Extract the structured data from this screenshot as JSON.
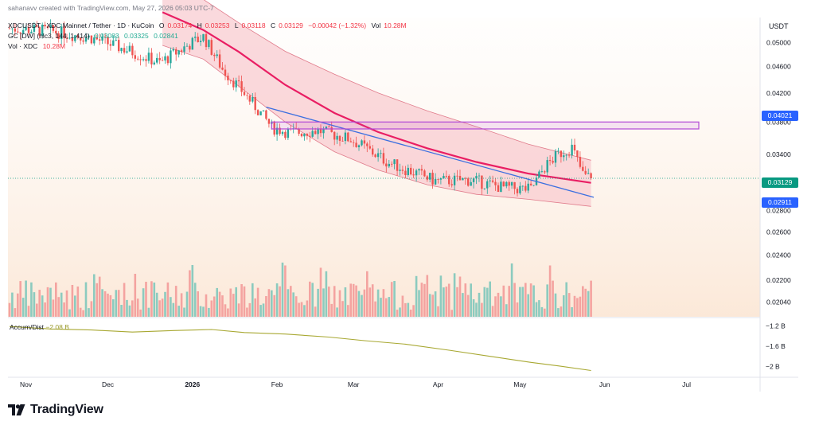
{
  "header": {
    "author_line": "sahanavv created with TradingView.com, May 27, 2026 05:03 UTC-7",
    "symbol": "XDCUSDT · XDC Mainnet / Tether · 1D · KuCoin",
    "ohlc": {
      "o_label": "O",
      "o": "0.03174",
      "h_label": "H",
      "h": "0.03253",
      "l_label": "L",
      "l": "0.03118",
      "c_label": "C",
      "c": "0.03129",
      "change": "−0.00042 (−1.32%)",
      "vol_label": "Vol",
      "vol": "10.28M"
    },
    "gc_line": {
      "name": "GC [DW] (hlc3, 144, 1.414)",
      "v1": "0.03083",
      "v2": "0.03325",
      "v3": "0.02841"
    },
    "vol_line": {
      "name": "Vol · XDC",
      "value": "10.28M"
    }
  },
  "currency": "USDT",
  "price_tags": {
    "upper": "0.04021",
    "last": "0.03129",
    "lower": "0.02911"
  },
  "accum_dist": {
    "label": "Accum/Dist",
    "value": "−2.08 B"
  },
  "brand": {
    "name": "TradingView"
  },
  "colors": {
    "up": "#26a69a",
    "down": "#ef5350",
    "vol_up": "#8ccbbf",
    "vol_down": "#f4a3a0",
    "channel_fill": "#f8c9cf",
    "center_line": "#e91e63",
    "trend_line": "#3b6fe0",
    "box": "#b24ad6",
    "ad_line": "#a8a832",
    "tag_blue": "#2962ff",
    "tag_green": "#089981"
  },
  "chart_data": [
    {
      "type": "candlestick",
      "title": "XDCUSDT · XDC Mainnet / Tether · 1D · KuCoin",
      "x_ticks": [
        "Nov",
        "Dec",
        "2026",
        "Feb",
        "Mar",
        "Apr",
        "May",
        "Jun",
        "Jul"
      ],
      "y_ticks": [
        "0.05000",
        "0.04600",
        "0.04200",
        "0.03800",
        "0.03400",
        "0.02800",
        "0.02600",
        "0.02400",
        "0.02200",
        "0.02040"
      ],
      "y_scale": "log",
      "ylim": [
        0.0194,
        0.0545
      ],
      "last_close": 0.03129,
      "daily_close_path": [
        {
          "date": "2025-10-26",
          "close": 0.0525
        },
        {
          "date": "2025-11-10",
          "close": 0.052
        },
        {
          "date": "2025-11-25",
          "close": 0.0508
        },
        {
          "date": "2025-12-10",
          "close": 0.0484
        },
        {
          "date": "2025-12-20",
          "close": 0.0466
        },
        {
          "date": "2025-12-31",
          "close": 0.0497
        },
        {
          "date": "2026-01-05",
          "close": 0.051
        },
        {
          "date": "2026-01-12",
          "close": 0.0456
        },
        {
          "date": "2026-01-22",
          "close": 0.041
        },
        {
          "date": "2026-01-30",
          "close": 0.0373
        },
        {
          "date": "2026-02-06",
          "close": 0.0366
        },
        {
          "date": "2026-02-16",
          "close": 0.0369
        },
        {
          "date": "2026-02-28",
          "close": 0.0358
        },
        {
          "date": "2026-03-14",
          "close": 0.033
        },
        {
          "date": "2026-03-31",
          "close": 0.031
        },
        {
          "date": "2026-04-13",
          "close": 0.0311
        },
        {
          "date": "2026-04-25",
          "close": 0.0303
        },
        {
          "date": "2026-05-05",
          "close": 0.0301
        },
        {
          "date": "2026-05-10",
          "close": 0.0325
        },
        {
          "date": "2026-05-15",
          "close": 0.034
        },
        {
          "date": "2026-05-20",
          "close": 0.0348
        },
        {
          "date": "2026-05-24",
          "close": 0.0317
        },
        {
          "date": "2026-05-27",
          "close": 0.03129
        }
      ],
      "gaussian_channel": [
        {
          "date": "2025-12-21",
          "mid": 0.0555,
          "upper": 0.064,
          "lower": 0.0495
        },
        {
          "date": "2026-01-05",
          "mid": 0.0522,
          "upper": 0.058,
          "lower": 0.0472
        },
        {
          "date": "2026-01-18",
          "mid": 0.0484,
          "upper": 0.0535,
          "lower": 0.043
        },
        {
          "date": "2026-02-04",
          "mid": 0.0432,
          "upper": 0.0485,
          "lower": 0.038
        },
        {
          "date": "2026-02-22",
          "mid": 0.0392,
          "upper": 0.0448,
          "lower": 0.0343
        },
        {
          "date": "2026-03-10",
          "mid": 0.0367,
          "upper": 0.042,
          "lower": 0.0322
        },
        {
          "date": "2026-03-28",
          "mid": 0.0347,
          "upper": 0.0395,
          "lower": 0.0306
        },
        {
          "date": "2026-04-15",
          "mid": 0.0331,
          "upper": 0.0374,
          "lower": 0.0296
        },
        {
          "date": "2026-05-04",
          "mid": 0.0318,
          "upper": 0.0352,
          "lower": 0.0291
        },
        {
          "date": "2026-05-27",
          "mid": 0.0308,
          "upper": 0.0333,
          "lower": 0.0284
        }
      ],
      "trend_line": [
        {
          "date": "2026-01-28",
          "price": 0.04
        },
        {
          "date": "2026-05-28",
          "price": 0.0293
        }
      ],
      "resistance_box": {
        "date_from": "2026-01-30",
        "date_to": "2026-07-01",
        "price_low": 0.0371,
        "price_high": 0.038
      }
    },
    {
      "type": "line",
      "title": "Accum/Dist",
      "y_ticks": [
        "−1.2 B",
        "−1.6 B",
        "−2 B"
      ],
      "ylim": [
        -2.12,
        -1.05
      ],
      "unit": "B",
      "points": [
        {
          "date": "2025-10-26",
          "value": -1.21
        },
        {
          "date": "2025-11-10",
          "value": -1.26
        },
        {
          "date": "2025-11-25",
          "value": -1.28
        },
        {
          "date": "2025-12-10",
          "value": -1.32
        },
        {
          "date": "2025-12-25",
          "value": -1.29
        },
        {
          "date": "2026-01-08",
          "value": -1.27
        },
        {
          "date": "2026-01-20",
          "value": -1.33
        },
        {
          "date": "2026-02-04",
          "value": -1.36
        },
        {
          "date": "2026-02-20",
          "value": -1.42
        },
        {
          "date": "2026-03-05",
          "value": -1.49
        },
        {
          "date": "2026-03-20",
          "value": -1.56
        },
        {
          "date": "2026-04-05",
          "value": -1.68
        },
        {
          "date": "2026-04-20",
          "value": -1.8
        },
        {
          "date": "2026-05-05",
          "value": -1.92
        },
        {
          "date": "2026-05-15",
          "value": -1.99
        },
        {
          "date": "2026-05-27",
          "value": -2.08
        }
      ]
    }
  ]
}
